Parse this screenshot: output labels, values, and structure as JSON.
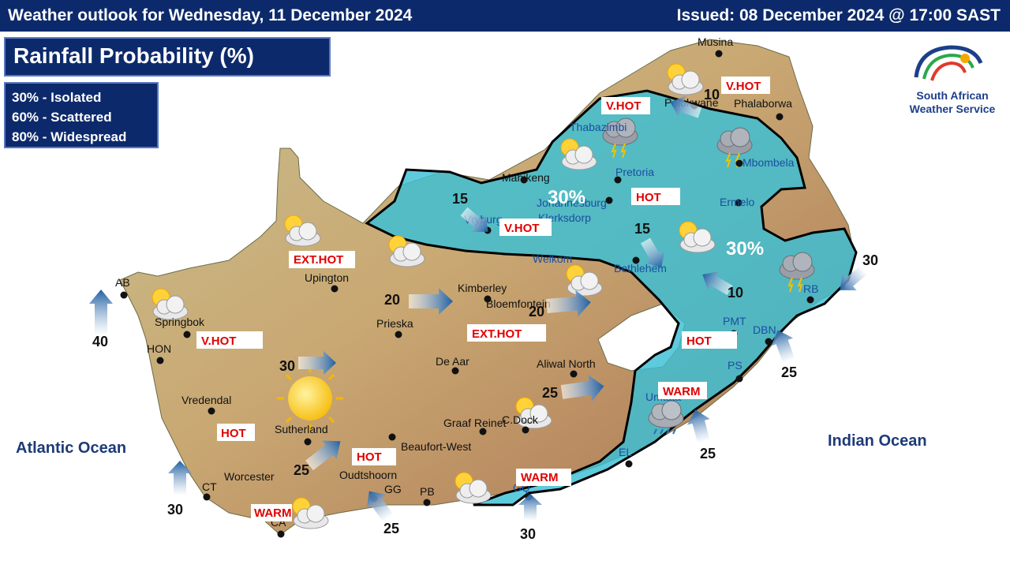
{
  "header": {
    "title": "Weather outlook for Wednesday, 11 December 2024",
    "issued": "Issued: 08 December 2024  @ 17:00 SAST"
  },
  "panel": {
    "title": "Rainfall  Probability (%)"
  },
  "legend": [
    "30% - Isolated",
    "60% - Scattered",
    "80% - Widespread"
  ],
  "oceans": {
    "atlantic": "Atlantic Ocean",
    "indian": "Indian Ocean"
  },
  "logo": {
    "line1": "South African",
    "line2": "Weather Service"
  },
  "colors": {
    "header_bg": "#0c2a6b",
    "rain_zone": "#3bbfd6",
    "warning_text": "#e00000",
    "arrow": "#1f5fa3"
  },
  "cities": {
    "musina": "Musina",
    "polokwane": "Polokwane",
    "phalaborwa": "Phalaborwa",
    "thabazimbi": "Thabazimbi",
    "mahikeng": "Mahikeng",
    "pretoria": "Pretoria",
    "mbombela": "Mbombela",
    "johannesburg": "Johannesburg",
    "klerksdorp": "Klerksdorp",
    "ermelo": "Ermelo",
    "vryburg": "Vryburg",
    "welkom": "Welkom",
    "bethlehem": "Bethlehem",
    "upington": "Upington",
    "kimberley": "Kimberley",
    "bloemfontein": "Bloemfontein",
    "springbok": "Springbok",
    "prieska": "Prieska",
    "pmt": "PMT",
    "dbn": "DBN",
    "hon": "HON",
    "de_aar": "De Aar",
    "aliwal_north": "Aliwal North",
    "ps": "PS",
    "vredendal": "Vredendal",
    "umtata": "Umtata",
    "sutherland": "Sutherland",
    "graaf_reinet": "Graaf Reinet",
    "c_dock": "C.Dock",
    "beaufort_west": "Beaufort-West",
    "el": "EL",
    "worcester": "Worcester",
    "oudtshoorn": "Oudtshoorn",
    "ct": "CT",
    "gg": "GG",
    "pb": "PB",
    "gq": "GQ",
    "ca": "CA",
    "ab": "AB",
    "rb": "RB"
  },
  "warnings": {
    "polokwane": "V.HOT",
    "limpopo_ne": "V.HOT",
    "gauteng": "HOT",
    "vryburg": "V.HOT",
    "northern_cape": "EXT.HOT",
    "free_state": "EXT.HOT",
    "springbok": "V.HOT",
    "kzn": "HOT",
    "eastern_cape": "WARM",
    "swartland": "HOT",
    "karoo": "HOT",
    "garden_route": "WARM",
    "overberg": "WARM"
  },
  "zone_labels": {
    "zone_west": "30%",
    "zone_east": "30%"
  },
  "wind_speeds": {
    "polokwane": "10",
    "vryburg": "15",
    "klerksdorp": "15",
    "harrismith": "10",
    "richards_bay": "30",
    "kimberley": "20",
    "bloemfontein": "20",
    "ab": "40",
    "durban": "25",
    "hon": "30",
    "aliwal": "25",
    "eastern_cape": "25",
    "sutherland": "25",
    "ct": "30",
    "gg": "25",
    "gq": "30"
  },
  "weather_icons": [
    "partly-cloudy-icon",
    "thunderstorm-icon",
    "sunny-icon",
    "cloudy-rain-icon"
  ]
}
